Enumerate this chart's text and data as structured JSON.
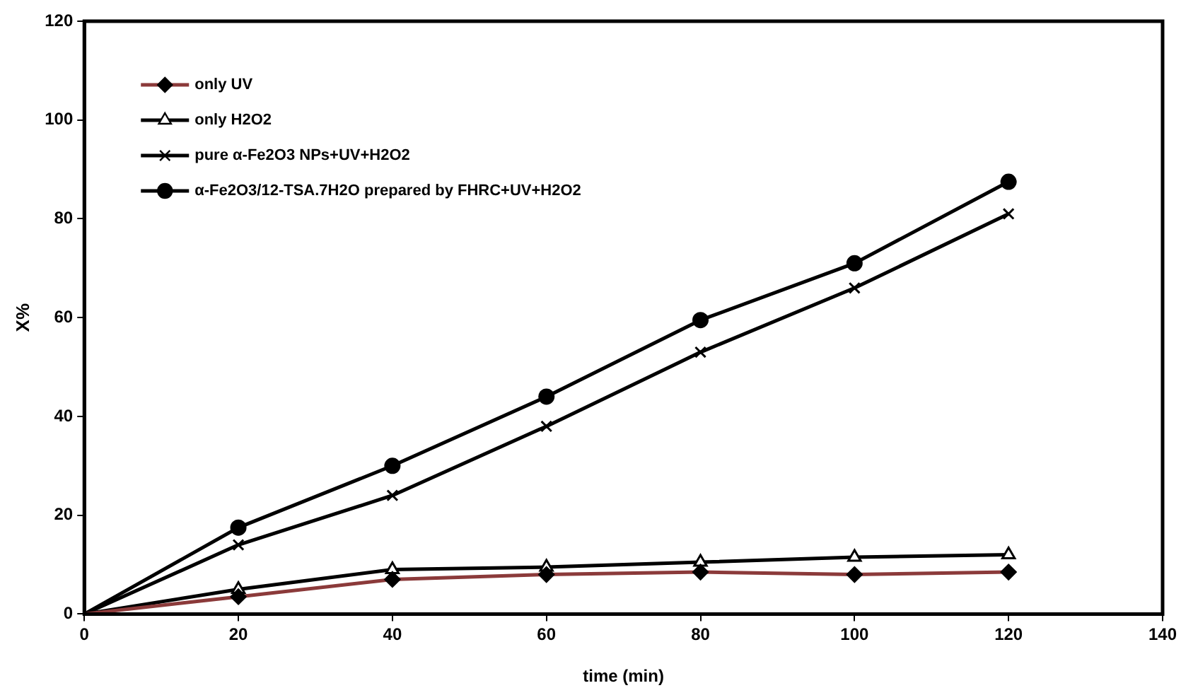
{
  "chart_data": {
    "type": "line",
    "xlabel": "time (min)",
    "ylabel": "X%",
    "x": [
      0,
      20,
      40,
      60,
      80,
      100,
      120
    ],
    "xlim": [
      0,
      140
    ],
    "xticks": [
      0,
      20,
      40,
      60,
      80,
      100,
      120,
      140
    ],
    "ylim": [
      0,
      120
    ],
    "yticks": [
      0,
      20,
      40,
      60,
      80,
      100,
      120
    ],
    "grid": false,
    "legend": "top left",
    "series": [
      {
        "name": "only UV",
        "color": "#8b3a3a",
        "marker": "diamond",
        "values": [
          0,
          3.5,
          7,
          8,
          8.5,
          8,
          8.5
        ]
      },
      {
        "name": "only H2O2",
        "color": "#000000",
        "marker": "triangle",
        "values": [
          0,
          5,
          9,
          9.5,
          10.5,
          11.5,
          12
        ]
      },
      {
        "name": "pure α-Fe2O3 NPs+UV+H2O2",
        "color": "#000000",
        "marker": "cross",
        "values": [
          0,
          14,
          24,
          38,
          53,
          66,
          81
        ]
      },
      {
        "name": "α-Fe2O3/12-TSA.7H2O prepared by FHRC+UV+H2O2",
        "color": "#000000",
        "marker": "circle",
        "values": [
          0,
          17.5,
          30,
          44,
          59.5,
          71,
          87.5
        ]
      }
    ]
  }
}
